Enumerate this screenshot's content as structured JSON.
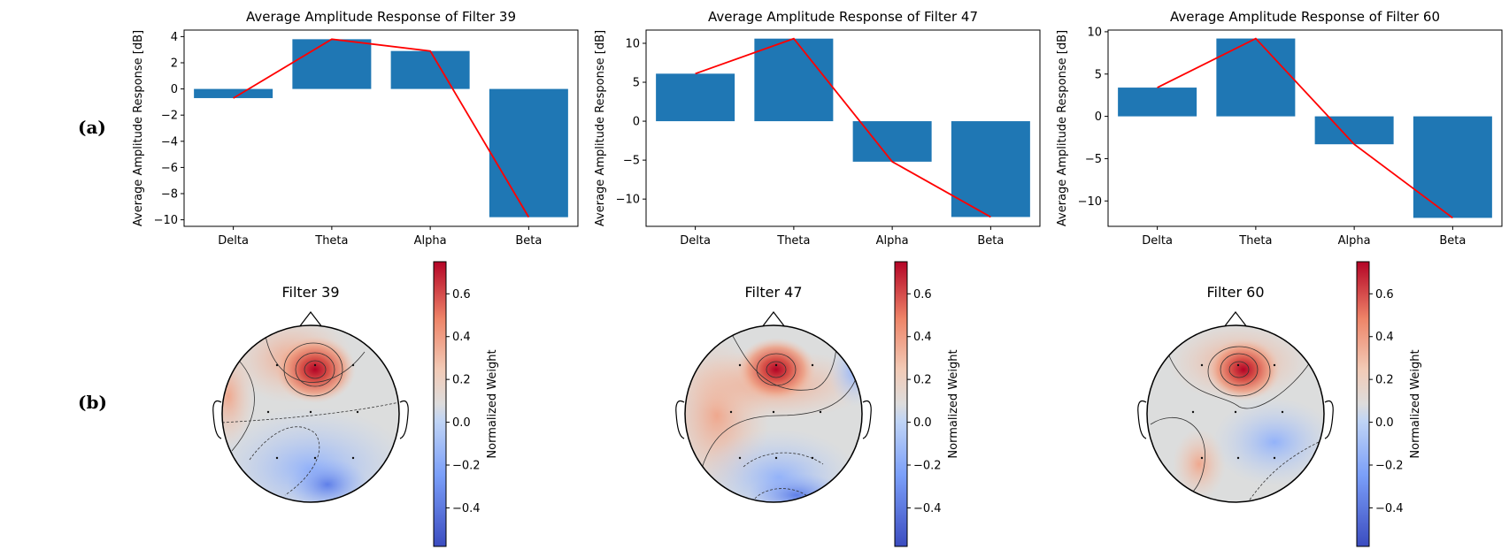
{
  "panel_labels": {
    "a": "(a)",
    "b": "(b)"
  },
  "colors": {
    "bar": "#1f77b4",
    "line": "#ff0000",
    "cmap_neg": "#3b4cc0",
    "cmap_mid": "#dddddd",
    "cmap_pos": "#b40426"
  },
  "chart_data": [
    {
      "type": "bar",
      "title": "Average Amplitude Response of Filter 39",
      "ylabel": "Average Amplitude Response [dB]",
      "xlabel": "",
      "categories": [
        "Delta",
        "Theta",
        "Alpha",
        "Beta"
      ],
      "values": [
        -0.7,
        3.8,
        2.9,
        -9.8
      ],
      "line_values": [
        -0.7,
        3.8,
        2.9,
        -9.8
      ],
      "ylim": [
        -10.5,
        4.5
      ],
      "yticks": [
        -10,
        -8,
        -6,
        -4,
        -2,
        0,
        2,
        4
      ],
      "ytick_labels": [
        "−10",
        "−8",
        "−6",
        "−4",
        "−2",
        "0",
        "2",
        "4"
      ]
    },
    {
      "type": "bar",
      "title": "Average Amplitude Response of Filter 47",
      "ylabel": "Average Amplitude Response [dB]",
      "xlabel": "",
      "categories": [
        "Delta",
        "Theta",
        "Alpha",
        "Beta"
      ],
      "values": [
        6.1,
        10.6,
        -5.2,
        -12.3
      ],
      "line_values": [
        6.1,
        10.6,
        -5.2,
        -12.3
      ],
      "ylim": [
        -13.5,
        11.7
      ],
      "yticks": [
        -10,
        -5,
        0,
        5,
        10
      ],
      "ytick_labels": [
        "−10",
        "−5",
        "0",
        "5",
        "10"
      ]
    },
    {
      "type": "bar",
      "title": "Average Amplitude Response of Filter 60",
      "ylabel": "Average Amplitude Response [dB]",
      "xlabel": "",
      "categories": [
        "Delta",
        "Theta",
        "Alpha",
        "Beta"
      ],
      "values": [
        3.4,
        9.2,
        -3.3,
        -12.0
      ],
      "line_values": [
        3.4,
        9.2,
        -3.3,
        -12.0
      ],
      "ylim": [
        -13.0,
        10.2
      ],
      "yticks": [
        -10,
        -5,
        0,
        5,
        10
      ],
      "ytick_labels": [
        "−10",
        "−5",
        "0",
        "5",
        "10"
      ]
    },
    {
      "type": "heatmap",
      "title": "Filter 39",
      "colorbar_label": "Normalized Weight",
      "clim": [
        -0.58,
        0.75
      ],
      "cbar_ticks": [
        -0.4,
        -0.2,
        0.0,
        0.2,
        0.4,
        0.6
      ],
      "cbar_tick_labels": [
        "−0.4",
        "−0.2",
        "0.0",
        "0.2",
        "0.4",
        "0.6"
      ]
    },
    {
      "type": "heatmap",
      "title": "Filter 47",
      "colorbar_label": "Normalized Weight",
      "clim": [
        -0.58,
        0.75
      ],
      "cbar_ticks": [
        -0.4,
        -0.2,
        0.0,
        0.2,
        0.4,
        0.6
      ],
      "cbar_tick_labels": [
        "−0.4",
        "−0.2",
        "0.0",
        "0.2",
        "0.4",
        "0.6"
      ]
    },
    {
      "type": "heatmap",
      "title": "Filter 60",
      "colorbar_label": "Normalized Weight",
      "clim": [
        -0.58,
        0.75
      ],
      "cbar_ticks": [
        -0.4,
        -0.2,
        0.0,
        0.2,
        0.4,
        0.6
      ],
      "cbar_tick_labels": [
        "−0.4",
        "−0.2",
        "0.0",
        "0.2",
        "0.4",
        "0.6"
      ]
    }
  ]
}
